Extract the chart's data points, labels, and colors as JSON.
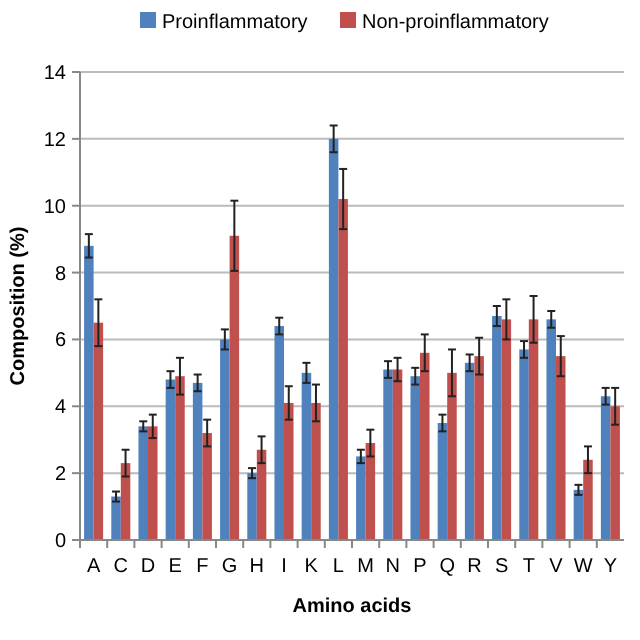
{
  "chart_data": {
    "type": "bar",
    "xlabel": "Amino acids",
    "ylabel": "Composition (%)",
    "categories": [
      "A",
      "C",
      "D",
      "E",
      "F",
      "G",
      "H",
      "I",
      "K",
      "L",
      "M",
      "N",
      "P",
      "Q",
      "R",
      "S",
      "T",
      "V",
      "W",
      "Y"
    ],
    "series": [
      {
        "name": "Proinflammatory",
        "color": "#4f81bd",
        "values": [
          8.8,
          1.3,
          3.4,
          4.8,
          4.7,
          6.0,
          2.0,
          6.4,
          5.0,
          12.0,
          2.5,
          5.1,
          4.9,
          3.5,
          5.3,
          6.7,
          5.7,
          6.6,
          1.5,
          4.3
        ],
        "errors": [
          0.35,
          0.15,
          0.15,
          0.25,
          0.25,
          0.3,
          0.15,
          0.25,
          0.3,
          0.4,
          0.2,
          0.25,
          0.25,
          0.25,
          0.25,
          0.3,
          0.25,
          0.25,
          0.15,
          0.25
        ]
      },
      {
        "name": "Non-proinflammatory",
        "color": "#c0504d",
        "values": [
          6.5,
          2.3,
          3.4,
          4.9,
          3.2,
          9.1,
          2.7,
          4.1,
          4.1,
          10.2,
          2.9,
          5.1,
          5.6,
          5.0,
          5.5,
          6.6,
          6.6,
          5.5,
          2.4,
          4.0
        ],
        "errors": [
          0.7,
          0.4,
          0.35,
          0.55,
          0.4,
          1.05,
          0.4,
          0.5,
          0.55,
          0.9,
          0.4,
          0.35,
          0.55,
          0.7,
          0.55,
          0.6,
          0.7,
          0.6,
          0.4,
          0.55
        ]
      }
    ],
    "ylim": [
      0,
      14
    ],
    "yticks": [
      0,
      2,
      4,
      6,
      8,
      10,
      12,
      14
    ],
    "grid": "y",
    "legend": "top"
  }
}
